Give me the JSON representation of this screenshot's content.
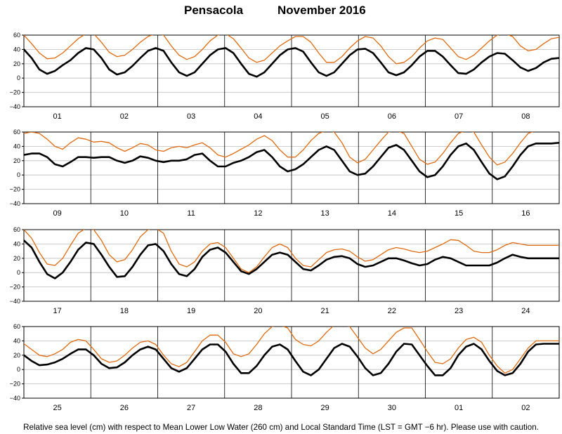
{
  "title": {
    "station": "Pensacola",
    "period": "November   2016"
  },
  "caption": "Relative sea level (cm) with respect to Mean Lower Low Water (260 cm) and Local Standard Time (LST = GMT −6 hr). Please use with caution.",
  "colors": {
    "observed": "#000000",
    "predicted": "#e06a10",
    "grid": "#bdbdbd",
    "frame": "#000000"
  },
  "chart_data": [
    {
      "type": "line",
      "panel": 1,
      "ylim": [
        -40,
        60
      ],
      "yticks": [
        "60",
        "40",
        "20",
        "0",
        "−20",
        "−40"
      ],
      "days": [
        "01",
        "02",
        "03",
        "04",
        "05",
        "06",
        "07",
        "08"
      ],
      "series": [
        {
          "color": "black",
          "values": [
            40,
            28,
            12,
            6,
            10,
            18,
            25,
            35,
            42,
            40,
            28,
            12,
            5,
            8,
            17,
            28,
            38,
            42,
            38,
            22,
            8,
            3,
            8,
            20,
            32,
            40,
            42,
            35,
            20,
            6,
            2,
            8,
            20,
            32,
            40,
            42,
            37,
            22,
            8,
            3,
            8,
            20,
            32,
            40,
            41,
            35,
            22,
            8,
            4,
            8,
            18,
            30,
            38,
            38,
            30,
            18,
            7,
            6,
            12,
            22,
            30,
            35,
            34,
            25,
            15,
            10,
            14,
            22,
            27,
            28
          ]
        },
        {
          "color": "orange",
          "values": [
            60,
            48,
            35,
            27,
            28,
            35,
            45,
            55,
            62,
            62,
            50,
            36,
            30,
            32,
            40,
            50,
            58,
            62,
            60,
            45,
            32,
            26,
            30,
            40,
            52,
            60,
            62,
            55,
            42,
            28,
            22,
            25,
            35,
            45,
            52,
            58,
            58,
            50,
            35,
            22,
            22,
            30,
            42,
            52,
            58,
            56,
            45,
            30,
            20,
            22,
            30,
            42,
            52,
            56,
            54,
            42,
            30,
            26,
            32,
            42,
            52,
            60,
            62,
            58,
            45,
            38,
            40,
            48,
            55,
            57
          ]
        }
      ]
    },
    {
      "type": "line",
      "panel": 2,
      "ylim": [
        -40,
        60
      ],
      "yticks": [
        "60",
        "40",
        "20",
        "0",
        "−20",
        "−40"
      ],
      "days": [
        "09",
        "10",
        "11",
        "12",
        "13",
        "14",
        "15",
        "16"
      ],
      "series": [
        {
          "color": "black",
          "values": [
            28,
            30,
            30,
            25,
            15,
            12,
            18,
            25,
            25,
            24,
            25,
            25,
            20,
            17,
            20,
            26,
            24,
            20,
            18,
            20,
            20,
            22,
            28,
            30,
            20,
            12,
            12,
            17,
            20,
            25,
            32,
            35,
            25,
            12,
            5,
            8,
            15,
            25,
            35,
            40,
            35,
            20,
            5,
            0,
            2,
            12,
            25,
            38,
            42,
            35,
            20,
            5,
            -3,
            0,
            12,
            28,
            40,
            44,
            35,
            18,
            2,
            -6,
            -2,
            12,
            28,
            40,
            44,
            44,
            44,
            45
          ]
        },
        {
          "color": "orange",
          "values": [
            58,
            60,
            58,
            50,
            40,
            36,
            45,
            52,
            50,
            46,
            47,
            45,
            38,
            33,
            38,
            44,
            42,
            35,
            33,
            38,
            40,
            38,
            42,
            45,
            38,
            28,
            25,
            30,
            36,
            42,
            50,
            55,
            48,
            35,
            25,
            25,
            35,
            48,
            58,
            62,
            60,
            45,
            25,
            17,
            22,
            35,
            48,
            60,
            62,
            58,
            40,
            22,
            15,
            18,
            30,
            45,
            58,
            62,
            60,
            42,
            25,
            14,
            18,
            30,
            45,
            58,
            62,
            62,
            62,
            62
          ]
        }
      ]
    },
    {
      "type": "line",
      "panel": 3,
      "ylim": [
        -40,
        60
      ],
      "yticks": [
        "60",
        "40",
        "20",
        "0",
        "−20",
        "−40"
      ],
      "days": [
        "17",
        "18",
        "19",
        "20",
        "21",
        "22",
        "23",
        "24"
      ],
      "series": [
        {
          "color": "black",
          "values": [
            45,
            35,
            15,
            -2,
            -8,
            0,
            15,
            32,
            42,
            40,
            25,
            8,
            -6,
            -5,
            8,
            25,
            38,
            40,
            30,
            12,
            -2,
            -5,
            5,
            22,
            32,
            35,
            28,
            15,
            2,
            -2,
            5,
            15,
            25,
            28,
            25,
            15,
            5,
            3,
            10,
            18,
            22,
            23,
            20,
            12,
            8,
            10,
            15,
            20,
            20,
            17,
            13,
            10,
            12,
            18,
            22,
            20,
            15,
            10,
            10,
            10,
            10,
            14,
            20,
            25,
            22,
            20,
            20,
            20,
            20,
            20
          ]
        },
        {
          "color": "orange",
          "values": [
            60,
            48,
            28,
            12,
            10,
            20,
            38,
            55,
            62,
            60,
            45,
            25,
            15,
            18,
            32,
            50,
            60,
            62,
            55,
            30,
            12,
            8,
            15,
            30,
            40,
            42,
            35,
            20,
            5,
            0,
            8,
            22,
            35,
            40,
            35,
            20,
            10,
            8,
            18,
            28,
            32,
            33,
            30,
            22,
            16,
            18,
            25,
            32,
            35,
            33,
            30,
            28,
            30,
            35,
            40,
            46,
            45,
            38,
            30,
            28,
            28,
            32,
            38,
            42,
            40,
            38,
            38,
            38,
            38,
            38
          ]
        }
      ]
    },
    {
      "type": "line",
      "panel": 4,
      "ylim": [
        -40,
        60
      ],
      "yticks": [
        "60",
        "40",
        "20",
        "0",
        "−20",
        "−40"
      ],
      "days": [
        "25",
        "26",
        "27",
        "28",
        "29",
        "30",
        "01",
        "02"
      ],
      "series": [
        {
          "color": "black",
          "values": [
            20,
            12,
            6,
            7,
            10,
            15,
            22,
            28,
            28,
            20,
            8,
            2,
            3,
            10,
            20,
            28,
            32,
            28,
            15,
            2,
            -3,
            2,
            15,
            28,
            35,
            35,
            25,
            8,
            -5,
            -5,
            5,
            20,
            32,
            35,
            28,
            12,
            -3,
            -8,
            0,
            15,
            30,
            36,
            32,
            18,
            2,
            -8,
            -5,
            8,
            25,
            36,
            35,
            20,
            5,
            -8,
            -8,
            2,
            20,
            32,
            36,
            28,
            12,
            -2,
            -8,
            -5,
            8,
            25,
            35,
            36,
            36,
            36
          ]
        },
        {
          "color": "orange",
          "values": [
            36,
            28,
            20,
            18,
            22,
            28,
            38,
            42,
            40,
            28,
            15,
            10,
            12,
            20,
            30,
            38,
            40,
            35,
            20,
            8,
            4,
            10,
            25,
            40,
            48,
            48,
            38,
            22,
            18,
            22,
            35,
            50,
            60,
            62,
            58,
            42,
            35,
            33,
            40,
            52,
            62,
            62,
            60,
            45,
            30,
            22,
            28,
            40,
            52,
            58,
            58,
            42,
            25,
            10,
            8,
            15,
            30,
            42,
            45,
            38,
            20,
            5,
            -5,
            0,
            15,
            30,
            40,
            40,
            40,
            40
          ]
        }
      ]
    }
  ]
}
